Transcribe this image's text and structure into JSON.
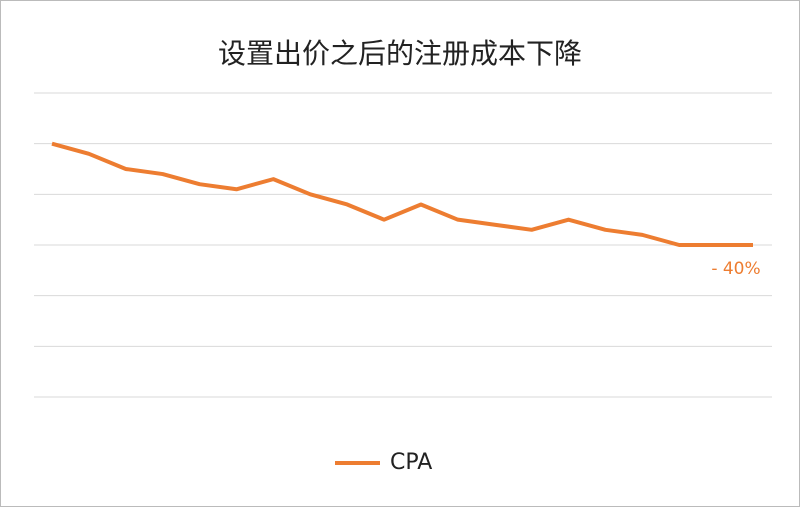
{
  "chart_data": {
    "type": "line",
    "title": "设置出价之后的注册成本下降",
    "categories": [
      null,
      null,
      null,
      null,
      null,
      null,
      null,
      null,
      null,
      null,
      null,
      null,
      null,
      null,
      null,
      null,
      null,
      null,
      null,
      null
    ],
    "series": [
      {
        "name": "CPA",
        "color": "#ed7d31",
        "values": [
          100,
          96,
          90,
          88,
          84,
          82,
          86,
          80,
          76,
          70,
          76,
          70,
          68,
          66,
          70,
          66,
          64,
          60,
          60,
          60
        ]
      }
    ],
    "ylim": [
      0,
      120
    ],
    "yticks": [
      0,
      20,
      40,
      60,
      80,
      100,
      120
    ],
    "grid": true,
    "annotation": "- 40%",
    "legend": "bottom"
  }
}
